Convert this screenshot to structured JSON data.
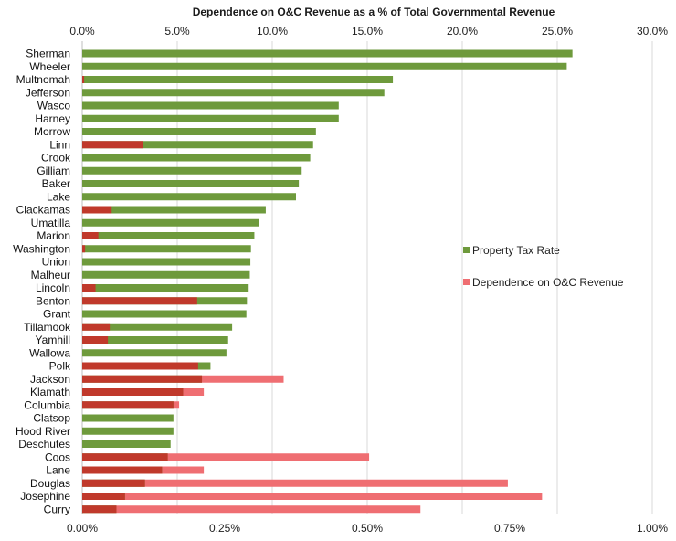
{
  "chart_data": {
    "type": "bar",
    "orientation": "horizontal",
    "title": "Dependence on O&C Revenue as a % of Total Governmental Revenue",
    "legend_placement": "right",
    "grid": true,
    "categories": [
      "Sherman",
      "Wheeler",
      "Multnomah",
      "Jefferson",
      "Wasco",
      "Harney",
      "Morrow",
      "Linn",
      "Crook",
      "Gilliam",
      "Baker",
      "Lake",
      "Clackamas",
      "Umatilla",
      "Marion",
      "Washington",
      "Union",
      "Malheur",
      "Lincoln",
      "Benton",
      "Grant",
      "Tillamook",
      "Yamhill",
      "Wallowa",
      "Polk",
      "Jackson",
      "Klamath",
      "Columbia",
      "Clatsop",
      "Hood River",
      "Deschutes",
      "Coos",
      "Lane",
      "Douglas",
      "Josephine",
      "Curry"
    ],
    "top_axis": {
      "ticks": [
        "0.0%",
        "5.0%",
        "10.0%",
        "15.0%",
        "20.0%",
        "25.0%",
        "30.0%"
      ],
      "tick_values": [
        0,
        5,
        10,
        15,
        20,
        25,
        30
      ],
      "range": [
        0,
        30
      ]
    },
    "bottom_axis": {
      "ticks": [
        "0.00%",
        "0.25%",
        "0.50%",
        "0.75%",
        "1.00%"
      ],
      "tick_values": [
        0,
        0.25,
        0.5,
        0.75,
        1.0
      ],
      "range": [
        0,
        1.0
      ]
    },
    "series": [
      {
        "name": "Property Tax Rate",
        "color": "#6e9a3c",
        "axis": "bottom",
        "values": [
          0.86,
          0.85,
          0.545,
          0.53,
          0.45,
          0.45,
          0.41,
          0.405,
          0.4,
          0.385,
          0.38,
          0.375,
          0.322,
          0.31,
          0.302,
          0.296,
          0.295,
          0.294,
          0.292,
          0.289,
          0.288,
          0.263,
          0.256,
          0.253,
          0.225,
          0.21,
          0.177,
          0.16,
          0.16,
          0.16,
          0.155,
          0.15,
          0.14,
          0.11,
          0.075,
          0.06
        ]
      },
      {
        "name": "Dependence on O&C Revenue",
        "color": "#ef6e72",
        "axis": "top",
        "values": [
          0,
          0,
          0.1,
          0,
          0,
          0,
          0,
          3.2,
          0,
          0,
          0,
          0,
          1.55,
          0,
          0.85,
          0.15,
          0,
          0,
          0.7,
          6.05,
          0,
          1.45,
          1.35,
          0,
          6.1,
          10.6,
          6.4,
          5.1,
          0,
          0,
          0,
          15.1,
          6.4,
          22.4,
          24.2,
          17.8
        ]
      }
    ]
  }
}
